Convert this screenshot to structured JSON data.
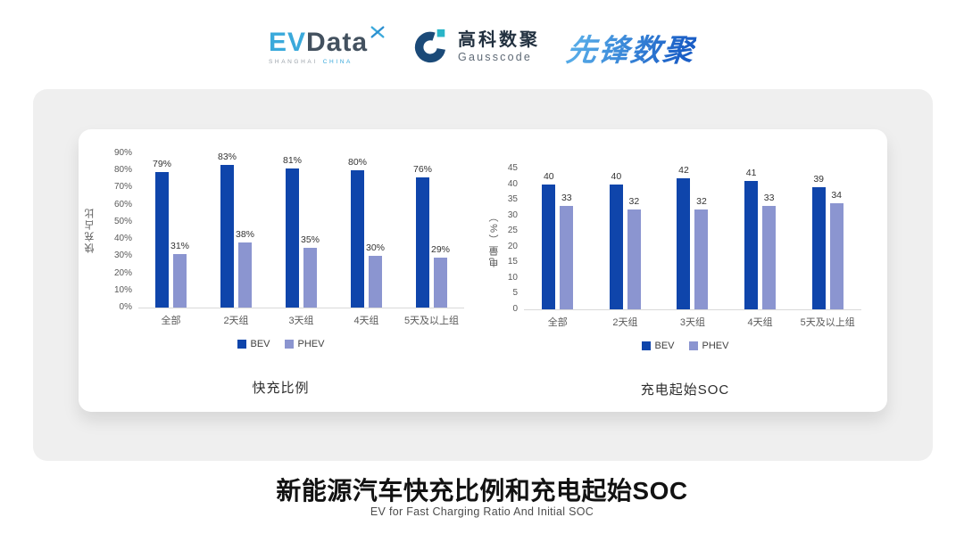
{
  "header": {
    "evdata": {
      "part1": "EV",
      "part2": "Data",
      "sub1": "SHANGHAI",
      "sub2": "CHINA"
    },
    "gausscode": {
      "name_cn": "高科数聚",
      "name_en": "Gausscode"
    },
    "xianfeng": {
      "name": "先锋数聚"
    }
  },
  "footer": {
    "title": "新能源汽车快充比例和充电起始SOC",
    "subtitle": "EV for Fast Charging Ratio And Initial SOC"
  },
  "colors": {
    "bev": "#0f45ab",
    "phev": "#8b95d0"
  },
  "chart_data": [
    {
      "type": "bar",
      "title": "快充比例",
      "ylabel": "快充占比",
      "xlabel": "",
      "categories": [
        "全部",
        "2天组",
        "3天组",
        "4天组",
        "5天及以上组"
      ],
      "series": [
        {
          "name": "BEV",
          "values": [
            79,
            83,
            81,
            80,
            76
          ]
        },
        {
          "name": "PHEV",
          "values": [
            31,
            38,
            35,
            30,
            29
          ]
        }
      ],
      "ylim": [
        0,
        90
      ],
      "tick_step": 10,
      "unit": "%",
      "grid": false,
      "legend_position": "bottom"
    },
    {
      "type": "bar",
      "title": "充电起始SOC",
      "ylabel": "电量（%）",
      "xlabel": "",
      "categories": [
        "全部",
        "2天组",
        "3天组",
        "4天组",
        "5天及以上组"
      ],
      "series": [
        {
          "name": "BEV",
          "values": [
            40,
            40,
            42,
            41,
            39
          ]
        },
        {
          "name": "PHEV",
          "values": [
            33,
            32,
            32,
            33,
            34
          ]
        }
      ],
      "ylim": [
        0,
        45
      ],
      "tick_step": 5,
      "unit": "",
      "grid": false,
      "legend_position": "bottom"
    }
  ]
}
